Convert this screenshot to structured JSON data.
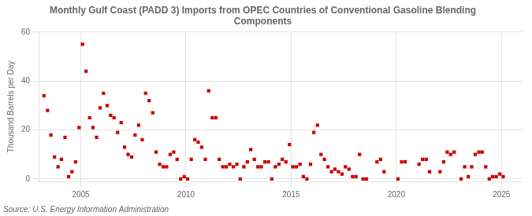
{
  "chart_data": {
    "type": "scatter",
    "title": "Monthly Gulf Coast (PADD 3) Imports from OPEC Countries of Conventional Gasoline Blending\nComponents",
    "ylabel": "Thousand Barrels per Day",
    "source": "Source: U.S. Energy Information Administration",
    "color": "#cc0000",
    "marker": "square",
    "grid": true,
    "xlim": [
      2003.0,
      2026.0
    ],
    "xticks": [
      2005,
      2010,
      2015,
      2020,
      2025
    ],
    "ylim": [
      -1,
      60
    ],
    "yticks": [
      0,
      20,
      40,
      60
    ],
    "x": [
      2003.25,
      2003.42,
      2003.58,
      2003.75,
      2003.92,
      2004.08,
      2004.25,
      2004.42,
      2004.58,
      2004.75,
      2004.92,
      2005.08,
      2005.25,
      2005.42,
      2005.58,
      2005.75,
      2005.92,
      2006.08,
      2006.25,
      2006.42,
      2006.58,
      2006.75,
      2006.92,
      2007.08,
      2007.25,
      2007.42,
      2007.58,
      2007.75,
      2007.92,
      2008.08,
      2008.25,
      2008.42,
      2008.58,
      2008.75,
      2008.92,
      2009.08,
      2009.25,
      2009.42,
      2009.58,
      2009.75,
      2009.92,
      2010.08,
      2010.25,
      2010.42,
      2010.58,
      2010.75,
      2010.92,
      2011.08,
      2011.25,
      2011.42,
      2011.58,
      2011.75,
      2011.92,
      2012.08,
      2012.25,
      2012.42,
      2012.58,
      2012.75,
      2012.92,
      2013.08,
      2013.25,
      2013.42,
      2013.58,
      2013.75,
      2013.92,
      2014.08,
      2014.25,
      2014.42,
      2014.58,
      2014.75,
      2014.92,
      2015.08,
      2015.25,
      2015.42,
      2015.58,
      2015.75,
      2015.92,
      2016.08,
      2016.25,
      2016.42,
      2016.58,
      2016.75,
      2016.92,
      2017.08,
      2017.25,
      2017.42,
      2017.58,
      2017.75,
      2017.92,
      2018.08,
      2018.25,
      2018.42,
      2018.58,
      2019.08,
      2019.25,
      2019.42,
      2020.08,
      2020.25,
      2020.42,
      2021.08,
      2021.25,
      2021.42,
      2021.58,
      2022.08,
      2022.25,
      2022.42,
      2022.58,
      2022.75,
      2023.08,
      2023.25,
      2023.42,
      2023.58,
      2023.75,
      2023.92,
      2024.08,
      2024.25,
      2024.42,
      2024.58,
      2024.75,
      2024.92,
      2025.08
    ],
    "values": [
      34,
      28,
      18,
      9,
      5,
      8,
      17,
      1,
      3,
      7,
      21,
      55,
      44,
      25,
      21,
      17,
      29,
      35,
      30,
      26,
      25,
      19,
      23,
      13,
      10,
      9,
      18,
      22,
      16,
      35,
      32,
      27,
      11,
      6,
      5,
      5,
      10,
      11,
      8,
      0,
      1,
      0,
      8,
      16,
      15,
      13,
      8,
      36,
      25,
      25,
      8,
      5,
      5,
      6,
      5,
      6,
      0,
      5,
      7,
      12,
      8,
      5,
      5,
      7,
      7,
      0,
      5,
      6,
      8,
      7,
      14,
      5,
      5,
      6,
      1,
      0,
      6,
      19,
      22,
      10,
      8,
      5,
      3,
      4,
      3,
      2,
      5,
      4,
      1,
      1,
      10,
      0,
      0,
      7,
      8,
      3,
      0,
      7,
      7,
      6,
      8,
      8,
      3,
      3,
      7,
      11,
      10,
      11,
      0,
      5,
      1,
      5,
      10,
      11,
      11,
      5,
      0,
      1,
      1,
      2,
      1
    ]
  }
}
